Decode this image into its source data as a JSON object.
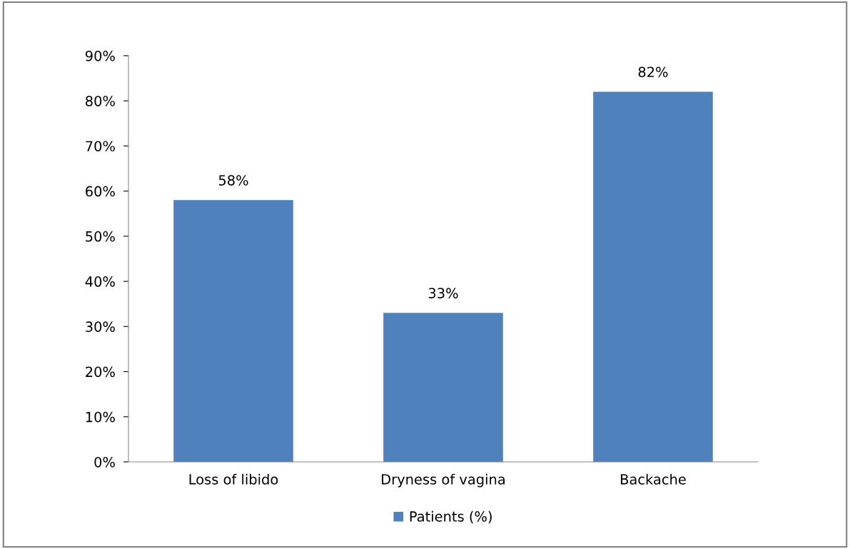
{
  "chart_data": {
    "type": "bar",
    "categories": [
      "Loss of libido",
      "Dryness of vagina",
      "Backache"
    ],
    "series": [
      {
        "name": "Patients (%)",
        "color": "#4f81bd",
        "values": [
          58,
          33,
          82
        ],
        "value_labels": [
          "58%",
          "33%",
          "82%"
        ]
      }
    ],
    "ylim": [
      0,
      90
    ],
    "yticks": [
      {
        "value": 0,
        "label": "0%"
      },
      {
        "value": 10,
        "label": "10%"
      },
      {
        "value": 20,
        "label": "20%"
      },
      {
        "value": 30,
        "label": "30%"
      },
      {
        "value": 40,
        "label": "40%"
      },
      {
        "value": 50,
        "label": "50%"
      },
      {
        "value": 60,
        "label": "60%"
      },
      {
        "value": 70,
        "label": "70%"
      },
      {
        "value": 80,
        "label": "80%"
      },
      {
        "value": 90,
        "label": "90%"
      }
    ],
    "grid": false,
    "legend": "bottom"
  }
}
